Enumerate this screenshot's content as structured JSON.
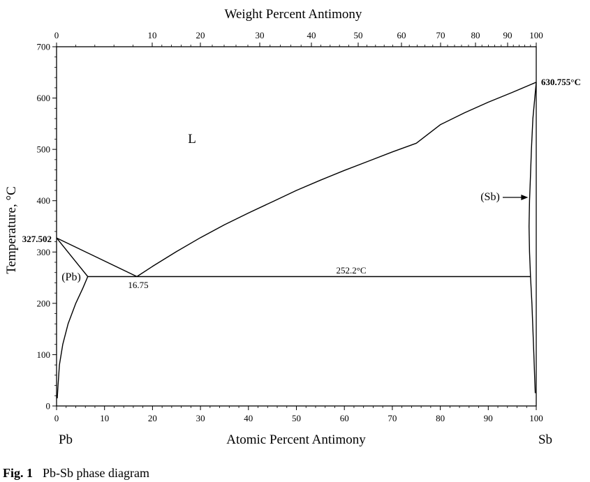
{
  "chart_data": {
    "type": "phase-diagram",
    "top_axis": {
      "label": "Weight Percent Antimony",
      "ticks": [
        0,
        10,
        20,
        30,
        40,
        50,
        60,
        70,
        80,
        90,
        100
      ]
    },
    "x_axis": {
      "label": "Atomic Percent Antimony",
      "range": [
        0,
        100
      ],
      "ticks": [
        0,
        10,
        20,
        30,
        40,
        50,
        60,
        70,
        80,
        90,
        100
      ]
    },
    "y_axis": {
      "label": "Temperature, °C",
      "range": [
        0,
        700
      ],
      "ticks": [
        0,
        100,
        200,
        300,
        400,
        500,
        600,
        700
      ]
    },
    "element_left": "Pb",
    "element_right": "Sb",
    "phase_labels": {
      "liquid": "L",
      "pb_solid": "(Pb)",
      "sb_solid": "(Sb)"
    },
    "annotations": {
      "pb_melting": "327.502",
      "sb_melting": "630.755°C",
      "eutectic_temp": "252.2°C",
      "eutectic_comp": "16.75"
    },
    "points": {
      "pb_melt": [
        0,
        327.502
      ],
      "sb_melt": [
        100,
        630.755
      ],
      "eutectic": [
        16.75,
        252.2
      ],
      "pb_solvus_max": [
        6.5,
        252.2
      ],
      "sb_solvus_max": [
        98.8,
        252.2
      ]
    },
    "curves": {
      "liquidus_pb": [
        [
          0,
          327.502
        ],
        [
          16.75,
          252.2
        ]
      ],
      "solidus_pb": [
        [
          0,
          327.502
        ],
        [
          6.5,
          252.2
        ]
      ],
      "solvus_pb": [
        [
          6.5,
          252.2
        ],
        [
          5.5,
          230
        ],
        [
          4,
          200
        ],
        [
          2.4,
          160
        ],
        [
          1.3,
          120
        ],
        [
          0.6,
          80
        ],
        [
          0.3,
          40
        ],
        [
          0.15,
          15
        ]
      ],
      "liquidus_sb": [
        [
          16.75,
          252.2
        ],
        [
          20,
          272
        ],
        [
          25,
          301
        ],
        [
          30,
          328
        ],
        [
          35,
          353
        ],
        [
          40,
          376
        ],
        [
          45,
          398
        ],
        [
          50,
          420
        ],
        [
          55,
          440
        ],
        [
          60,
          459
        ],
        [
          65,
          477
        ],
        [
          70,
          495
        ],
        [
          75,
          512
        ],
        [
          80,
          548
        ],
        [
          85,
          571
        ],
        [
          90,
          592
        ],
        [
          95,
          611
        ],
        [
          100,
          630.755
        ]
      ],
      "solidus_sb": [
        [
          98.8,
          252.2
        ],
        [
          98.6,
          300
        ],
        [
          98.5,
          350
        ],
        [
          98.6,
          400
        ],
        [
          98.8,
          450
        ],
        [
          99.0,
          500
        ],
        [
          99.3,
          560
        ],
        [
          100,
          630.755
        ]
      ],
      "solvus_sb": [
        [
          98.8,
          252.2
        ],
        [
          99.1,
          200
        ],
        [
          99.3,
          150
        ],
        [
          99.5,
          100
        ],
        [
          99.7,
          50
        ],
        [
          99.8,
          25
        ]
      ],
      "eutectic_line": [
        [
          6.5,
          252.2
        ],
        [
          98.8,
          252.2
        ]
      ]
    }
  },
  "caption": {
    "figure_number": "Fig. 1",
    "text": "Pb-Sb phase diagram"
  }
}
